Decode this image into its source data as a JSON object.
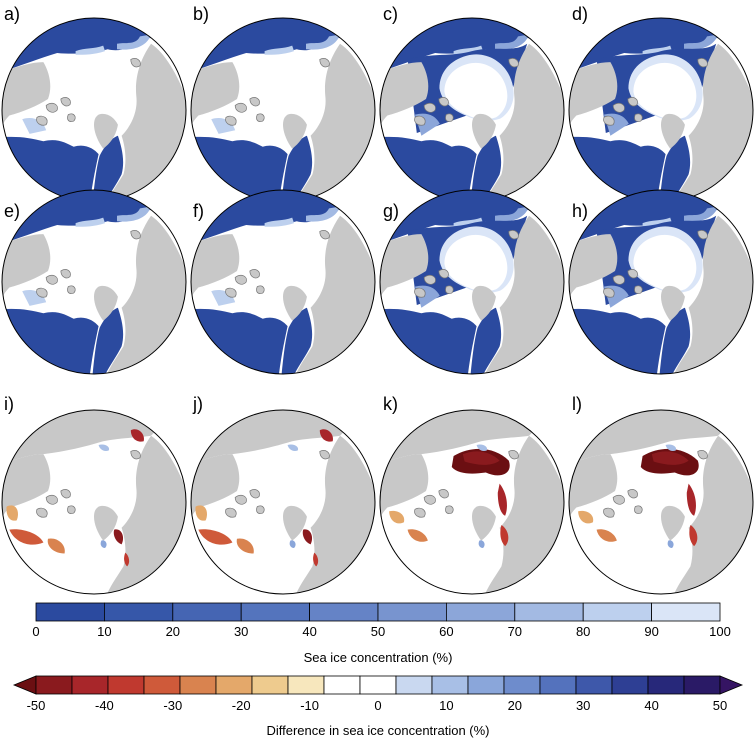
{
  "colors": {
    "ocean_low": "#2c4ca0",
    "land": "#c8c8c8",
    "ice": "#ffffff",
    "border": "#000000"
  },
  "chart_data": {
    "type": "heatmap",
    "description_grid": "3 rows x 4 columns of north polar stereographic maps",
    "panels": [
      {
        "label": "a)",
        "kind": "concentration",
        "ice_extent": "large",
        "margin_tone": "sharp"
      },
      {
        "label": "b)",
        "kind": "concentration",
        "ice_extent": "large",
        "margin_tone": "sharp"
      },
      {
        "label": "c)",
        "kind": "concentration",
        "ice_extent": "reduced",
        "margin_tone": "diffuse"
      },
      {
        "label": "d)",
        "kind": "concentration",
        "ice_extent": "reduced",
        "margin_tone": "diffuse"
      },
      {
        "label": "e)",
        "kind": "concentration",
        "ice_extent": "large",
        "margin_tone": "sharp"
      },
      {
        "label": "f)",
        "kind": "concentration",
        "ice_extent": "large",
        "margin_tone": "sharp"
      },
      {
        "label": "g)",
        "kind": "concentration",
        "ice_extent": "reduced",
        "margin_tone": "diffuse"
      },
      {
        "label": "h)",
        "kind": "concentration",
        "ice_extent": "reduced",
        "margin_tone": "diffuse"
      },
      {
        "label": "i)",
        "kind": "difference",
        "max_loss_pct": -40
      },
      {
        "label": "j)",
        "kind": "difference",
        "max_loss_pct": -40
      },
      {
        "label": "k)",
        "kind": "difference",
        "max_loss_pct": -50
      },
      {
        "label": "l)",
        "kind": "difference",
        "max_loss_pct": -50
      }
    ],
    "colorbar_concentration": {
      "title": "Sea ice concentration (%)",
      "ticks": [
        "0",
        "10",
        "20",
        "30",
        "40",
        "50",
        "60",
        "70",
        "80",
        "90",
        "100"
      ],
      "colors": [
        "#2b4a9f",
        "#3657a9",
        "#4565b3",
        "#5474bd",
        "#6583c6",
        "#7894cf",
        "#8ca6d9",
        "#a3bae3",
        "#bdd0ee",
        "#dae5f7"
      ]
    },
    "colorbar_difference": {
      "title": "Difference in sea ice concentration (%)",
      "ticks": [
        "-50",
        "-40",
        "-30",
        "-20",
        "-10",
        "0",
        "10",
        "20",
        "30",
        "40",
        "50"
      ],
      "colors": [
        "#6b0f12",
        "#8a1a1e",
        "#a8262a",
        "#c0392f",
        "#cf5a3a",
        "#d9834f",
        "#e4a86a",
        "#eecb8e",
        "#f7e7bd",
        "#ffffff",
        "#ffffff",
        "#c9d8f0",
        "#a8bfe6",
        "#8aa6da",
        "#6e8ccc",
        "#5472bd",
        "#3e58aa",
        "#2e3f94",
        "#27287a",
        "#2a1a66",
        "#351463"
      ],
      "extend": "both"
    }
  }
}
